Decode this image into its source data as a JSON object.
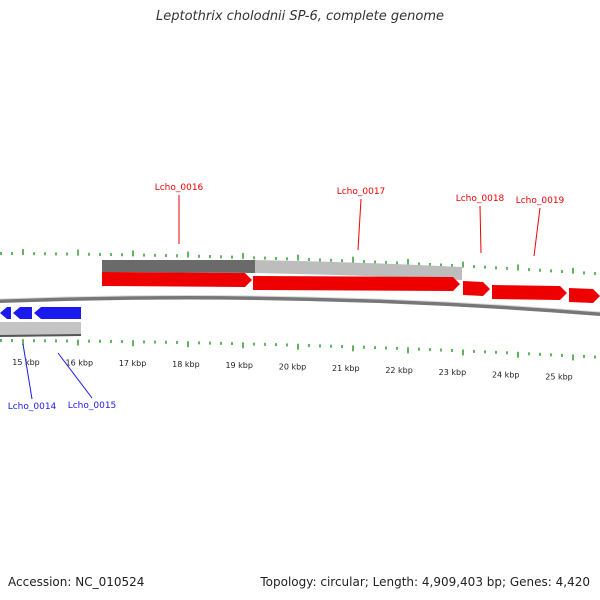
{
  "title": "Leptothrix cholodnii SP-6, complete genome",
  "footer": {
    "accession": "Accession: NC_010524",
    "summary": "Topology: circular; Length: 4,909,403 bp; Genes: 4,420"
  },
  "colors": {
    "forward": "#ee0000",
    "reverse": "#1a1aee",
    "tick": "#2e9a2e",
    "backbone": "#777777",
    "gray_dark": "#6a6a6a",
    "gray_light": "#bdbdbd"
  },
  "scale_labels": [
    "15 kbp",
    "16 kbp",
    "17 kbp",
    "18 kbp",
    "19 kbp",
    "20 kbp",
    "21 kbp",
    "22 kbp",
    "23 kbp",
    "24 kbp",
    "25 kbp"
  ],
  "genes": [
    {
      "label": "Lcho_0014",
      "strand": "reverse"
    },
    {
      "label": "Lcho_0015",
      "strand": "reverse"
    },
    {
      "label": "Lcho_0016",
      "strand": "forward"
    },
    {
      "label": "Lcho_0017",
      "strand": "forward"
    },
    {
      "label": "Lcho_0018",
      "strand": "forward"
    },
    {
      "label": "Lcho_0019",
      "strand": "forward"
    }
  ]
}
